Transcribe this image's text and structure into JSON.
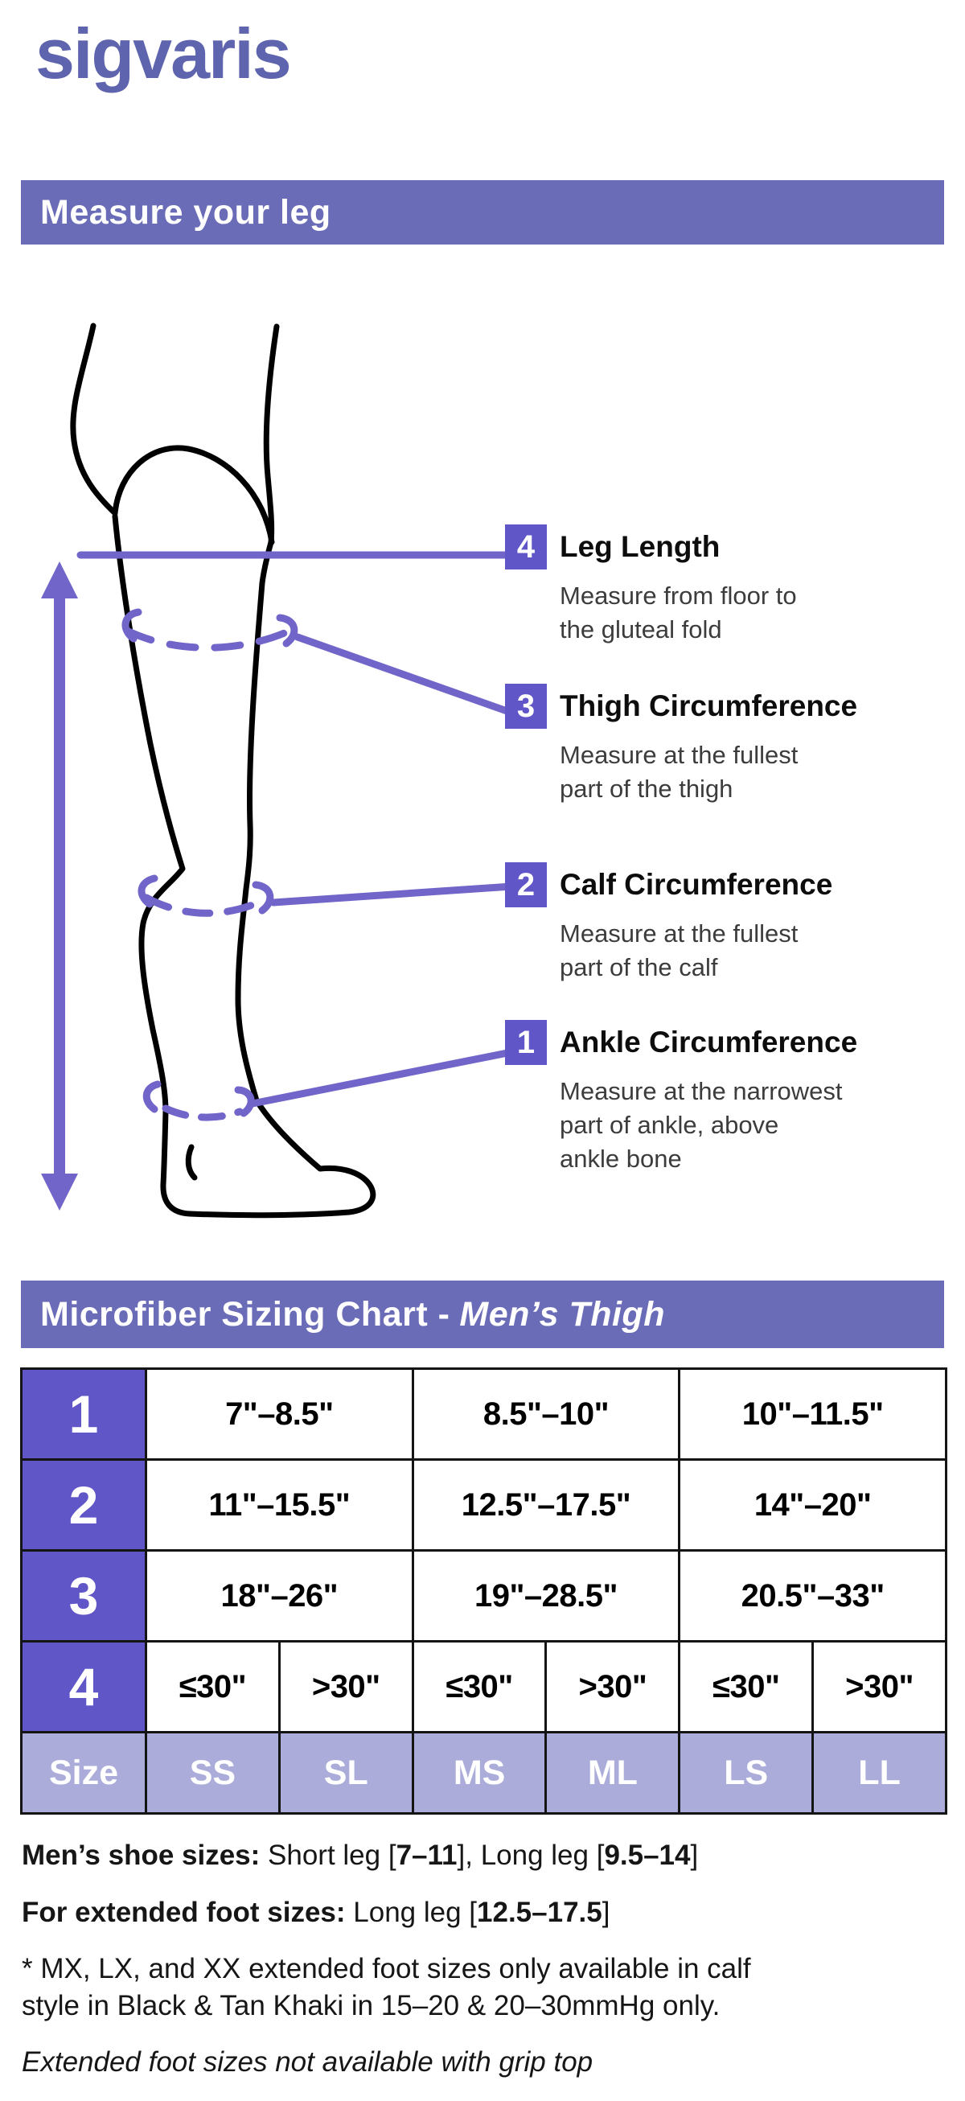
{
  "brand": {
    "logo_text": "sigvaris"
  },
  "colors": {
    "accent": "#6156c7",
    "banner_bg": "#6b6cb7",
    "size_row_bg": "#abacd9",
    "logo_color": "#5e64ad",
    "diagram_stroke": "#7165c9",
    "table_border": "#141414"
  },
  "section_measure": {
    "title": "Measure your leg",
    "callouts": [
      {
        "number": "4",
        "title": "Leg Length",
        "description": "Measure from floor to\nthe gluteal fold"
      },
      {
        "number": "3",
        "title": "Thigh Circumference",
        "description": "Measure at the fullest\npart of the thigh"
      },
      {
        "number": "2",
        "title": "Calf Circumference",
        "description": "Measure at the fullest\npart of the calf"
      },
      {
        "number": "1",
        "title": "Ankle Circumference",
        "description": "Measure at the narrowest\npart of ankle, above\nankle bone"
      }
    ]
  },
  "section_chart": {
    "title_regular": "Microfiber Sizing Chart -",
    "title_italic": "Men’s Thigh"
  },
  "sizing_table": {
    "rows": [
      {
        "label": "1",
        "cells": [
          {
            "text": "7\"–8.5\"",
            "span": 2
          },
          {
            "text": "8.5\"–10\"",
            "span": 2
          },
          {
            "text": "10\"–11.5\"",
            "span": 2
          }
        ]
      },
      {
        "label": "2",
        "cells": [
          {
            "text": "11\"–15.5\"",
            "span": 2
          },
          {
            "text": "12.5\"–17.5\"",
            "span": 2
          },
          {
            "text": "14\"–20\"",
            "span": 2
          }
        ]
      },
      {
        "label": "3",
        "cells": [
          {
            "text": "18\"–26\"",
            "span": 2
          },
          {
            "text": "19\"–28.5\"",
            "span": 2
          },
          {
            "text": "20.5\"–33\"",
            "span": 2
          }
        ]
      },
      {
        "label": "4",
        "cells": [
          {
            "text": "≤30\"",
            "span": 1
          },
          {
            "text": ">30\"",
            "span": 1
          },
          {
            "text": "≤30\"",
            "span": 1
          },
          {
            "text": ">30\"",
            "span": 1
          },
          {
            "text": "≤30\"",
            "span": 1
          },
          {
            "text": ">30\"",
            "span": 1
          }
        ]
      }
    ],
    "size_row": {
      "label": "Size",
      "cells": [
        "SS",
        "SL",
        "MS",
        "ML",
        "LS",
        "LL"
      ]
    }
  },
  "footnotes": {
    "lines": [
      [
        {
          "text": "Men’s shoe sizes: ",
          "bold": true
        },
        {
          "text": "Short leg ["
        },
        {
          "text": "7–11",
          "bold": true
        },
        {
          "text": "], Long leg ["
        },
        {
          "text": "9.5–14",
          "bold": true
        },
        {
          "text": "]"
        }
      ],
      [
        {
          "text": "For extended foot sizes: ",
          "bold": true
        },
        {
          "text": "Long leg ["
        },
        {
          "text": "12.5–17.5",
          "bold": true
        },
        {
          "text": "]"
        }
      ],
      [
        {
          "text": "* MX, LX, and XX extended foot sizes only available in calf\nstyle in Black & Tan Khaki in 15–20 & 20–30mmHg only."
        }
      ],
      [
        {
          "text": "Extended foot sizes not available with grip top",
          "italic": true
        }
      ]
    ]
  }
}
